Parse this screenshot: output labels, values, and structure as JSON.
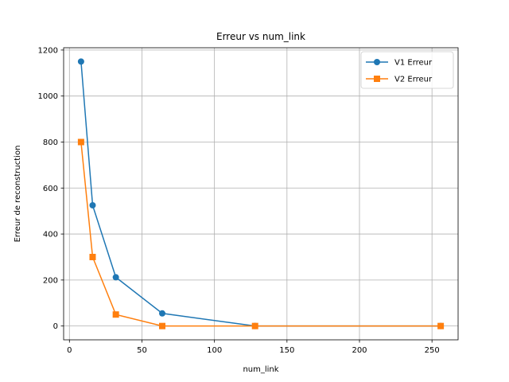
{
  "chart_data": {
    "type": "line",
    "title": "Erreur vs num_link",
    "xlabel": "num_link",
    "ylabel": "Erreur de reconstruction",
    "xlim": [
      -4,
      268
    ],
    "ylim": [
      -60,
      1210
    ],
    "xticks": [
      0,
      50,
      100,
      150,
      200,
      250
    ],
    "yticks": [
      0,
      200,
      400,
      600,
      800,
      1000,
      1200
    ],
    "grid": true,
    "legend": "top-right",
    "series": [
      {
        "name": "V1 Erreur",
        "color": "#1f77b4",
        "marker": "circle",
        "x": [
          8,
          16,
          32,
          64,
          128,
          256
        ],
        "y": [
          1150,
          525,
          212,
          55,
          0,
          0
        ]
      },
      {
        "name": "V2 Erreur",
        "color": "#ff7f0e",
        "marker": "square",
        "x": [
          8,
          16,
          32,
          64,
          128,
          256
        ],
        "y": [
          800,
          300,
          50,
          0,
          0,
          0
        ]
      }
    ]
  }
}
